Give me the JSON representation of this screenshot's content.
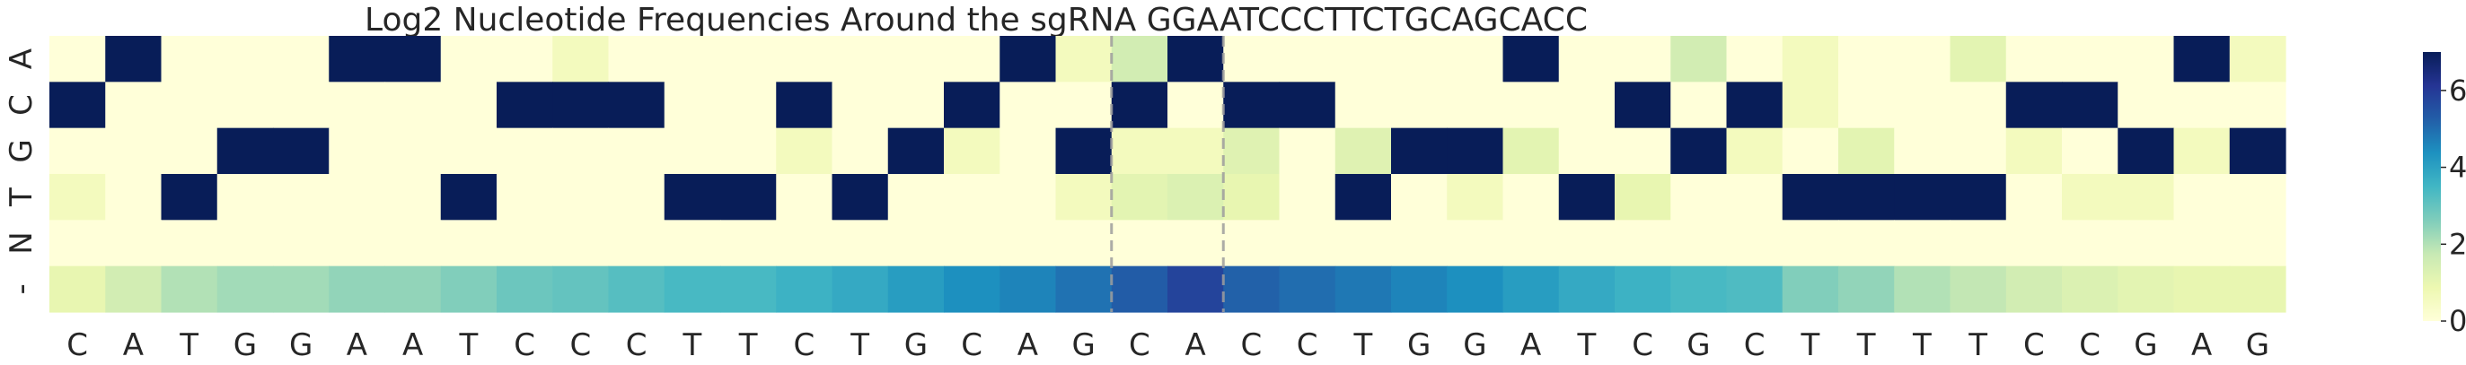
{
  "chart_data": {
    "type": "heatmap",
    "title": "Log2 Nucleotide Frequencies Around the sgRNA GGAATCCCTTCTGCAGCACC",
    "row_labels": [
      "A",
      "C",
      "G",
      "T",
      "N",
      "-"
    ],
    "col_labels": [
      "C",
      "A",
      "T",
      "G",
      "G",
      "A",
      "A",
      "T",
      "C",
      "C",
      "C",
      "T",
      "T",
      "C",
      "T",
      "G",
      "C",
      "A",
      "G",
      "C",
      "A",
      "C",
      "C",
      "T",
      "G",
      "G",
      "A",
      "T",
      "C",
      "G",
      "C",
      "T",
      "T",
      "T",
      "T",
      "C",
      "C",
      "G",
      "A",
      "G"
    ],
    "values": [
      [
        0,
        7,
        0,
        0,
        0,
        7,
        7,
        0,
        0,
        0.6,
        0,
        0,
        0,
        0,
        0,
        0,
        0,
        7,
        0.6,
        1.5,
        7,
        0,
        0,
        0,
        0,
        0,
        7,
        0,
        0,
        1.5,
        0,
        0.6,
        0,
        0,
        1.1,
        0,
        0,
        0,
        7,
        0.6
      ],
      [
        7,
        0,
        0,
        0,
        0,
        0,
        0,
        0,
        7,
        7,
        7,
        0,
        0,
        7,
        0,
        0,
        7,
        0,
        0,
        7,
        0,
        7,
        7,
        0,
        0,
        0,
        0,
        0,
        7,
        0,
        7,
        0.6,
        0,
        0,
        0,
        7,
        7,
        0,
        0,
        0
      ],
      [
        0,
        0,
        0,
        7,
        7,
        0,
        0,
        0,
        0,
        0,
        0,
        0,
        0,
        0.6,
        0,
        7,
        0.6,
        0,
        7,
        0.6,
        0.6,
        1.2,
        0,
        1.2,
        7,
        7,
        1.1,
        0,
        0,
        7,
        0.6,
        0,
        1.1,
        0,
        0,
        0.6,
        0,
        7,
        0.6,
        7
      ],
      [
        0.6,
        0,
        7,
        0,
        0,
        0,
        0,
        7,
        0,
        0,
        0,
        7,
        7,
        0,
        7,
        0,
        0,
        0,
        0.6,
        1.1,
        1.3,
        1.0,
        0,
        7,
        0,
        0.6,
        0,
        7,
        1.0,
        0,
        0,
        7,
        7,
        7,
        7,
        0,
        0.6,
        0.6,
        0,
        0
      ],
      [
        0,
        0,
        0,
        0,
        0,
        0,
        0,
        0,
        0,
        0,
        0,
        0,
        0,
        0,
        0,
        0,
        0,
        0,
        0,
        0,
        0,
        0,
        0,
        0,
        0,
        0,
        0,
        0,
        0,
        0,
        0,
        0,
        0,
        0,
        0,
        0,
        0,
        0,
        0,
        0
      ],
      [
        1.0,
        1.5,
        2.0,
        2.2,
        2.2,
        2.4,
        2.4,
        2.6,
        2.9,
        3.0,
        3.2,
        3.4,
        3.4,
        3.6,
        3.8,
        4.1,
        4.4,
        4.6,
        4.9,
        5.3,
        5.8,
        5.2,
        5.0,
        4.8,
        4.6,
        4.4,
        4.1,
        3.8,
        3.6,
        3.4,
        3.3,
        2.6,
        2.4,
        2.0,
        1.8,
        1.5,
        1.3,
        1.1,
        1.0,
        1.0
      ]
    ],
    "vmin": 0,
    "vmax": 7,
    "colorbar_ticks": [
      0,
      2,
      4,
      6
    ],
    "colormap": "YlGnBu",
    "cut_site_lines": {
      "after_column_indices": [
        18,
        20
      ],
      "style": "dashed",
      "color": "#9e9e9e"
    }
  },
  "colors": {
    "ylgnbu": [
      "#ffffd9",
      "#edf8b1",
      "#c7e9b4",
      "#7fcdbb",
      "#41b6c4",
      "#1d91c0",
      "#225ea8",
      "#253494",
      "#081d58"
    ],
    "text": "#262626"
  }
}
